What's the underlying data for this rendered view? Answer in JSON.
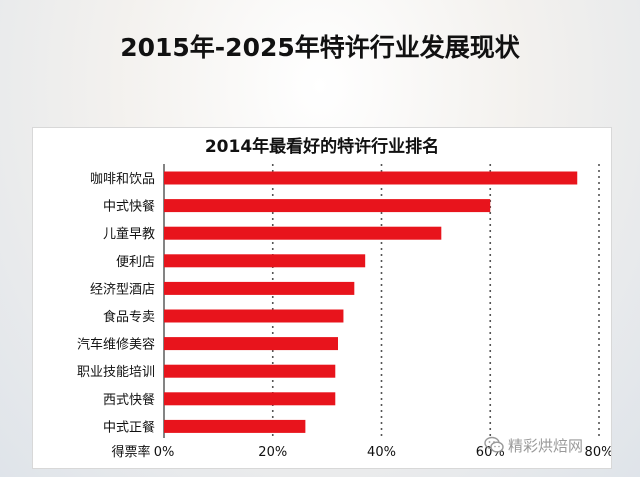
{
  "page_title": "2015年-2025年特许行业发展现状",
  "watermark": {
    "text": "精彩烘焙网",
    "icon": "wechat-icon"
  },
  "chart_data": {
    "type": "bar",
    "orientation": "horizontal",
    "title": "2014年最看好的特许行业排名",
    "xlabel": "得票率",
    "ylabel": "",
    "categories": [
      "咖啡和饮品",
      "中式快餐",
      "儿童早教",
      "便利店",
      "经济型酒店",
      "食品专卖",
      "汽车维修美容",
      "职业技能培训",
      "西式快餐",
      "中式正餐"
    ],
    "values": [
      76,
      60,
      51,
      37,
      35,
      33,
      32,
      31.5,
      31.5,
      26
    ],
    "value_unit": "%",
    "xlim": [
      0,
      80
    ],
    "xticks": [
      "0%",
      "20%",
      "40%",
      "60%",
      "80%"
    ],
    "xtick_values": [
      0,
      20,
      40,
      60,
      80
    ],
    "grid": true,
    "grid_style": "dashed",
    "bar_color": "#e8141c",
    "legend": "none"
  }
}
